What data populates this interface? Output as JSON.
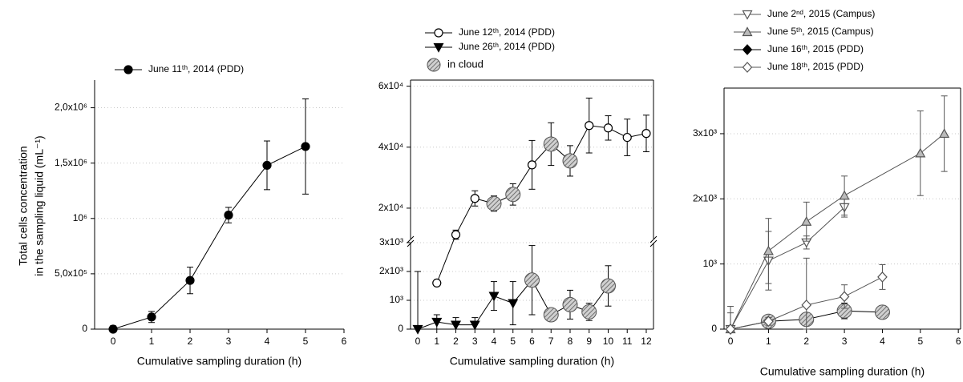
{
  "chart_data": [
    {
      "type": "line",
      "y_label": [
        "Total cells concentration",
        "in the sampling liquid (mL⁻¹)"
      ],
      "x_label": "Cumulative sampling duration (h)",
      "xlim": [
        -0.48,
        6
      ],
      "xticks": [
        0,
        1,
        2,
        3,
        4,
        5,
        6
      ],
      "ylim": [
        0,
        2250000
      ],
      "yticks": [
        0,
        {
          "value": 500000,
          "label": "5,0x10⁵"
        },
        {
          "value": 1000000,
          "label": "10⁶"
        },
        {
          "value": 1500000,
          "label": "1,5x10⁶"
        },
        {
          "value": 2000000,
          "label": "2,0x10⁶"
        }
      ],
      "grid": true,
      "box": false,
      "series": [
        {
          "name": "June 11ᵗʰ, 2014 (PDD)",
          "color": "#000000",
          "marker": "circle",
          "fill": "#000000",
          "x": [
            0,
            1,
            2,
            3,
            4,
            5
          ],
          "values": [
            0,
            110000,
            440000,
            1030000,
            1480000,
            1650000
          ],
          "errors": [
            30000,
            50000,
            120000,
            70000,
            220000,
            430000
          ]
        }
      ]
    },
    {
      "type": "line",
      "x_label": "Cumulative sampling duration (h)",
      "xlim": [
        -0.38,
        12.38
      ],
      "xticks": [
        0,
        1,
        2,
        3,
        4,
        5,
        6,
        7,
        8,
        9,
        10,
        11,
        12
      ],
      "ylim": [
        0,
        3000
      ],
      "yticks": [
        0,
        {
          "value": 1000,
          "label": "10³"
        },
        {
          "value": 2000,
          "label": "2x10³"
        },
        {
          "value": 3000,
          "label": "3x10³"
        }
      ],
      "ylim_upper": [
        10000,
        62000
      ],
      "yticks_upper": [
        {
          "value": 20000,
          "label": "2x10⁴"
        },
        {
          "value": 40000,
          "label": "4x10⁴"
        },
        {
          "value": 60000,
          "label": "6x10⁴"
        }
      ],
      "grid": true,
      "box": true,
      "cloud_label": "in cloud",
      "series": [
        {
          "name": "June 12ᵗʰ, 2014 (PDD)",
          "color": "#000000",
          "marker": "circle",
          "fill": "#ffffff",
          "x": [
            1,
            2,
            3,
            4,
            5,
            6,
            7,
            8,
            9,
            10,
            11,
            12
          ],
          "values": [
            1600,
            11300,
            23200,
            21500,
            24500,
            34200,
            41000,
            35500,
            47100,
            46300,
            43200,
            44500
          ],
          "errors": [
            0,
            1500,
            2500,
            2500,
            3500,
            8000,
            7000,
            5000,
            9000,
            4000,
            6000,
            6000
          ],
          "cloud": [
            false,
            false,
            false,
            true,
            true,
            false,
            true,
            true,
            false,
            false,
            false,
            false
          ]
        },
        {
          "name": "June 26ᵗʰ, 2014 (PDD)",
          "color": "#000000",
          "marker": "tri-down",
          "fill": "#000000",
          "x": [
            0,
            1,
            2,
            3,
            4,
            5,
            6,
            7,
            8,
            9,
            10
          ],
          "values": [
            0,
            250,
            150,
            150,
            1150,
            900,
            1700,
            500,
            850,
            600,
            1500
          ],
          "errors": [
            2000,
            250,
            250,
            250,
            500,
            750,
            1200,
            200,
            500,
            300,
            700
          ],
          "cloud": [
            false,
            false,
            false,
            false,
            false,
            false,
            true,
            true,
            true,
            true,
            true
          ]
        }
      ]
    },
    {
      "type": "line",
      "x_label": "Cumulative sampling duration (h)",
      "xlim": [
        -0.17,
        6.06
      ],
      "xticks": [
        0,
        1,
        2,
        3,
        4,
        5,
        6
      ],
      "ylim": [
        0,
        3700
      ],
      "yticks": [
        0,
        {
          "value": 1000,
          "label": "10³"
        },
        {
          "value": 2000,
          "label": "2x10³"
        },
        {
          "value": 3000,
          "label": "3x10³"
        }
      ],
      "grid": true,
      "box": true,
      "series": [
        {
          "name": "June 2ⁿᵈ, 2015 (Campus)",
          "color": "#555555",
          "marker": "tri-down",
          "fill": "#ffffff",
          "x": [
            0,
            1,
            2,
            3
          ],
          "values": [
            0,
            1050,
            1330,
            1870
          ],
          "errors": [
            250,
            450,
            100,
            150
          ],
          "cloud": [
            false,
            false,
            false,
            false
          ]
        },
        {
          "name": "June 5ᵗʰ, 2015 (Campus)",
          "color": "#555555",
          "marker": "tri-up",
          "fill": "#bbbbbb",
          "x": [
            0,
            1,
            2,
            3,
            5,
            5.63
          ],
          "values": [
            0,
            1200,
            1650,
            2050,
            2700,
            3000
          ],
          "errors": [
            350,
            500,
            300,
            300,
            650,
            580
          ],
          "cloud": [
            false,
            false,
            false,
            false,
            false,
            false
          ]
        },
        {
          "name": "June 16ᵗʰ, 2015 (PDD)",
          "color": "#000000",
          "marker": "diamond",
          "fill": "#000000",
          "x": [
            0,
            1,
            2,
            3,
            4
          ],
          "values": [
            0,
            120,
            150,
            280,
            260
          ],
          "errors": [
            0,
            80,
            100,
            120,
            60
          ],
          "cloud": [
            false,
            true,
            true,
            true,
            true
          ]
        },
        {
          "name": "June 18ᵗʰ, 2015 (PDD)",
          "color": "#555555",
          "marker": "diamond",
          "fill": "#ffffff",
          "x": [
            0,
            1,
            2,
            3,
            4
          ],
          "values": [
            0,
            120,
            370,
            500,
            800
          ],
          "errors": [
            0,
            60,
            720,
            180,
            190
          ],
          "cloud": [
            false,
            false,
            false,
            false,
            false
          ]
        }
      ]
    }
  ]
}
